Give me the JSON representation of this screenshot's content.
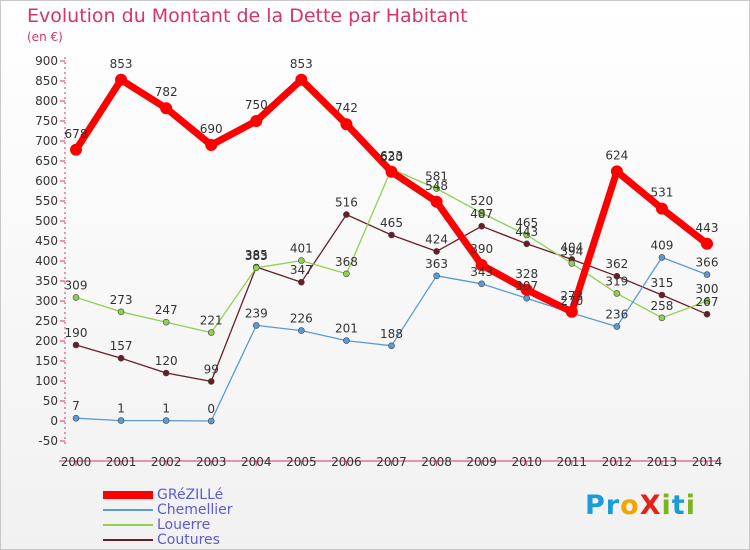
{
  "title": "Evolution du Montant de la Dette par Habitant",
  "unit_label": "(en €)",
  "brand": {
    "name": "Proxiti",
    "letters": [
      {
        "ch": "P",
        "color": "#1a9cd8"
      },
      {
        "ch": "r",
        "color": "#1a9cd8"
      },
      {
        "ch": "o",
        "color": "#f2a400"
      },
      {
        "ch": "X",
        "color": "#e2231a"
      },
      {
        "ch": "i",
        "color": "#7ab51d"
      },
      {
        "ch": "t",
        "color": "#1a9cd8"
      },
      {
        "ch": "i",
        "color": "#7ab51d"
      }
    ]
  },
  "chart_data": {
    "type": "line",
    "title": "Evolution du Montant de la Dette par Habitant",
    "ylabel": "(en €)",
    "xlabel": "",
    "x": [
      "2000",
      "2001",
      "2002",
      "2003",
      "2004",
      "2005",
      "2006",
      "2007",
      "2008",
      "2009",
      "2010",
      "2011",
      "2012",
      "2013",
      "2014"
    ],
    "y_ticks": [
      900,
      850,
      800,
      750,
      700,
      650,
      600,
      550,
      500,
      450,
      400,
      350,
      300,
      250,
      200,
      150,
      100,
      50,
      0,
      -50
    ],
    "ylim": [
      -50,
      900
    ],
    "grid": false,
    "legend_position": "bottom-left",
    "series": [
      {
        "name": "GRéZILLé",
        "color": "#ff0000",
        "line_width": 7,
        "values": [
          678,
          853,
          782,
          690,
          750,
          853,
          742,
          623,
          548,
          390,
          328,
          273,
          624,
          531,
          443
        ],
        "labels": [
          "678",
          "853",
          "782",
          "690",
          "750",
          "853",
          "742",
          "623",
          "548",
          "390",
          "328",
          "273",
          "624",
          "531",
          "443"
        ]
      },
      {
        "name": "Chemellier",
        "color": "#5a9bd4",
        "line_width": 1.3,
        "values": [
          7,
          1,
          1,
          0,
          239,
          226,
          201,
          188,
          363,
          343,
          307,
          270,
          236,
          409,
          366
        ],
        "labels": [
          "7",
          "1",
          "1",
          "0",
          "239",
          "226",
          "201",
          "188",
          "363",
          "343",
          "307",
          "270",
          "236",
          "409",
          "366"
        ]
      },
      {
        "name": "Louerre",
        "color": "#8fd14f",
        "line_width": 1.3,
        "values": [
          309,
          273,
          247,
          221,
          383,
          401,
          368,
          630,
          581,
          520,
          465,
          394,
          319,
          258,
          300
        ],
        "labels": [
          "309",
          "273",
          "247",
          "221",
          "383",
          "401",
          "368",
          "630",
          "581",
          "520",
          "465",
          "394",
          "319",
          "258",
          "300"
        ]
      },
      {
        "name": "Coutures",
        "color": "#6b1c28",
        "line_width": 1.3,
        "values": [
          190,
          157,
          120,
          99,
          385,
          347,
          516,
          465,
          424,
          487,
          443,
          404,
          362,
          315,
          267
        ],
        "labels": [
          "190",
          "157",
          "120",
          "99",
          "385",
          "347",
          "516",
          "465",
          "424",
          "487",
          "443",
          "404",
          "362",
          "315",
          "267"
        ]
      }
    ]
  }
}
